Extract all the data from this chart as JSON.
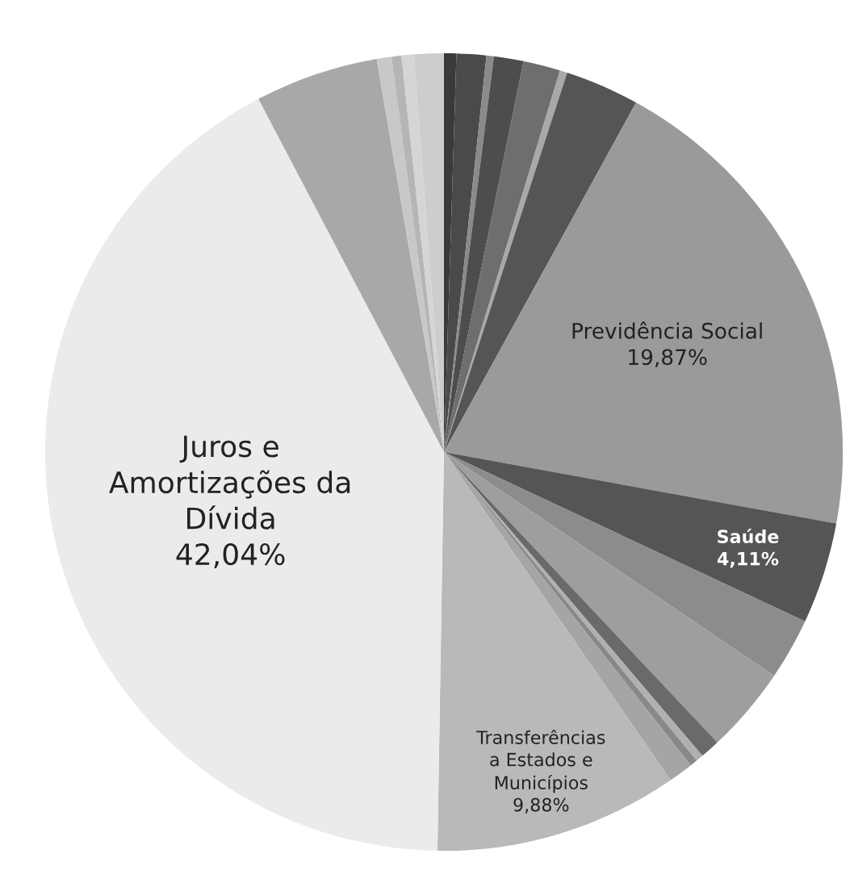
{
  "chart_data": {
    "type": "pie",
    "categories": [
      null,
      null,
      null,
      null,
      null,
      null,
      null,
      "Previdência Social",
      "Saúde",
      null,
      null,
      null,
      null,
      null,
      null,
      "Transferências\na Estados e\nMunicípios",
      "Juros e\nAmortizações da\nDívida",
      null,
      null,
      null,
      null,
      null
    ],
    "values": [
      0.5,
      1.2,
      0.3,
      1.2,
      1.5,
      0.3,
      3.0,
      19.87,
      4.11,
      2.5,
      3.5,
      0.8,
      0.3,
      0.3,
      1.0,
      9.88,
      42.04,
      5.0,
      0.6,
      0.4,
      0.5,
      1.2
    ],
    "colors": [
      "#3a3a3a",
      "#4a4a4a",
      "#8a8a8a",
      "#4d4d4d",
      "#6e6e6e",
      "#a8a8a8",
      "#555555",
      "#9a9a9a",
      "#555555",
      "#8c8c8c",
      "#9e9e9e",
      "#6a6a6a",
      "#b0b0b0",
      "#888888",
      "#a5a5a5",
      "#b9b9b9",
      "#ebebeb",
      "#a8a8a8",
      "#c8c8c8",
      "#b5b5b5",
      "#d5d5d5",
      "#cdcdcd"
    ],
    "value_labels": [
      null,
      null,
      null,
      null,
      null,
      null,
      null,
      "19,87%",
      "4,11%",
      null,
      null,
      null,
      null,
      null,
      null,
      "9,88%",
      "42,04%",
      null,
      null,
      null,
      null,
      null
    ]
  }
}
